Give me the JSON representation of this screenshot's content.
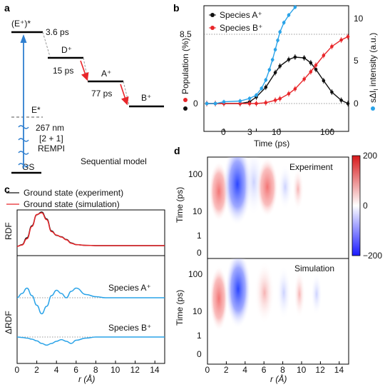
{
  "panels": {
    "a": {
      "label": "a",
      "levels": [
        {
          "name": "(E⁺)*",
          "time": "3.6 ps"
        },
        {
          "name": "D⁺",
          "time": "15 ps"
        },
        {
          "name": "A⁺",
          "time": "77 ps"
        },
        {
          "name": "B⁺",
          "time": ""
        }
      ],
      "excited_label": "E*",
      "ground_label": "GS",
      "pump_text": [
        "267 nm",
        "[2 + 1]",
        "REMPI"
      ],
      "model_label": "Sequential model"
    },
    "b": {
      "label": "b",
      "legend": [
        "Species A⁺",
        "Species B⁺"
      ],
      "ylabel_left": "Population (%)",
      "ylabel_right": "sΔI",
      "ylabel_right_tail": " intensity (a.u.)",
      "xlabel": "Time (ps)",
      "left_ticks": [
        "8.5",
        "0"
      ],
      "right_ticks": [
        "10",
        "5",
        "0"
      ],
      "x_ticks": [
        "0",
        "3",
        "10",
        "100"
      ],
      "colors": {
        "A": "#111111",
        "B": "#e8262a",
        "S": "#2aa3e8"
      }
    },
    "c": {
      "label": "c",
      "legend": [
        "Ground state (experiment)",
        "Ground state (simulation)"
      ],
      "ylabel_top": "RDF",
      "ylabel_bottom": "ΔRDF",
      "species": [
        "Species A⁺",
        "Species B⁺"
      ],
      "xlabel": "r (Å)",
      "x_ticks": [
        "0",
        "2",
        "4",
        "6",
        "8",
        "10",
        "12",
        "14"
      ]
    },
    "d": {
      "label": "d",
      "titles": [
        "Experiment",
        "Simulation"
      ],
      "ylabel": "Time (ps)",
      "y_ticks": [
        "100",
        "10",
        "1",
        "0"
      ],
      "xlabel": "r (Å)",
      "x_ticks": [
        "0",
        "2",
        "4",
        "6",
        "8",
        "10",
        "12",
        "14"
      ],
      "colorbar_ticks": [
        "200",
        "0",
        "−200"
      ]
    }
  },
  "chart_data": [
    {
      "type": "line",
      "panel": "b",
      "x": [
        -2,
        -1,
        0,
        1,
        2,
        3,
        5,
        8,
        10,
        15,
        20,
        30,
        40,
        50,
        70,
        100,
        150,
        200
      ],
      "series": [
        {
          "name": "Species A⁺",
          "axis": "left",
          "values": [
            0,
            0,
            0,
            0,
            0.2,
            0.8,
            2.0,
            3.8,
            4.6,
            5.4,
            5.7,
            5.6,
            5.0,
            4.2,
            2.8,
            1.4,
            0.4,
            0.0
          ]
        },
        {
          "name": "Species B⁺",
          "axis": "left",
          "values": [
            0,
            0,
            0,
            0,
            0,
            0,
            0.1,
            0.4,
            0.6,
            1.2,
            1.8,
            3.0,
            3.9,
            4.7,
            5.9,
            7.0,
            7.8,
            8.2
          ]
        }
      ],
      "scatter_series": [
        {
          "name": "sΔI",
          "axis": "right",
          "x": [
            -2,
            -1,
            0,
            1,
            2,
            3,
            4,
            5,
            6,
            7,
            8,
            9,
            10,
            12,
            15,
            20
          ],
          "values": [
            0,
            0,
            0.2,
            0.3,
            0.6,
            1.0,
            1.8,
            2.8,
            4.0,
            5.2,
            6.4,
            7.5,
            8.5,
            9.6,
            10.5,
            11.5
          ]
        }
      ],
      "ylim_left": [
        0,
        10
      ],
      "ylim_right": [
        0,
        12
      ]
    },
    {
      "type": "line",
      "panel": "c",
      "x": [
        0,
        0.5,
        1,
        1.5,
        2,
        2.5,
        3,
        3.5,
        4,
        4.5,
        5,
        5.5,
        6,
        7,
        8,
        9,
        10,
        12,
        14,
        15
      ],
      "series": [
        {
          "name": "Ground state (experiment)",
          "values": [
            0,
            0.05,
            0.25,
            0.6,
            0.92,
            1.0,
            0.8,
            0.45,
            0.32,
            0.28,
            0.2,
            0.1,
            0.05,
            0.03,
            0.02,
            0.02,
            0.02,
            0.02,
            0.02,
            0.02
          ]
        },
        {
          "name": "Ground state (simulation)",
          "values": [
            0,
            0.04,
            0.22,
            0.58,
            0.93,
            0.98,
            0.78,
            0.43,
            0.33,
            0.27,
            0.19,
            0.09,
            0.05,
            0.03,
            0.02,
            0.02,
            0.02,
            0.02,
            0.02,
            0.02
          ]
        },
        {
          "name": "Species A⁺",
          "values": [
            0,
            0.2,
            0.45,
            0.1,
            -0.35,
            -0.75,
            -0.4,
            0.1,
            0.35,
            0.2,
            0.0,
            0.3,
            0.45,
            0.15,
            0.05,
            0.0,
            0.0,
            0.0,
            0.0,
            0.0
          ]
        },
        {
          "name": "Species B⁺",
          "values": [
            0,
            -0.02,
            -0.05,
            -0.1,
            -0.18,
            -0.3,
            -0.38,
            -0.3,
            -0.2,
            -0.12,
            -0.2,
            -0.3,
            -0.15,
            -0.05,
            0.0,
            0.0,
            0.0,
            0.0,
            0.0,
            0.0
          ]
        }
      ],
      "xlim": [
        0,
        15
      ]
    },
    {
      "type": "heatmap",
      "panel": "d",
      "x_range": [
        0,
        15
      ],
      "colorbar_range": [
        -200,
        200
      ],
      "bands": [
        {
          "r": 1.3,
          "sign": "positive"
        },
        {
          "r": 3.2,
          "sign": "negative"
        },
        {
          "r": 5.6,
          "sign": "positive"
        },
        {
          "r": 7.5,
          "sign": "negative"
        },
        {
          "r": 9.5,
          "sign": "positive"
        }
      ]
    }
  ]
}
